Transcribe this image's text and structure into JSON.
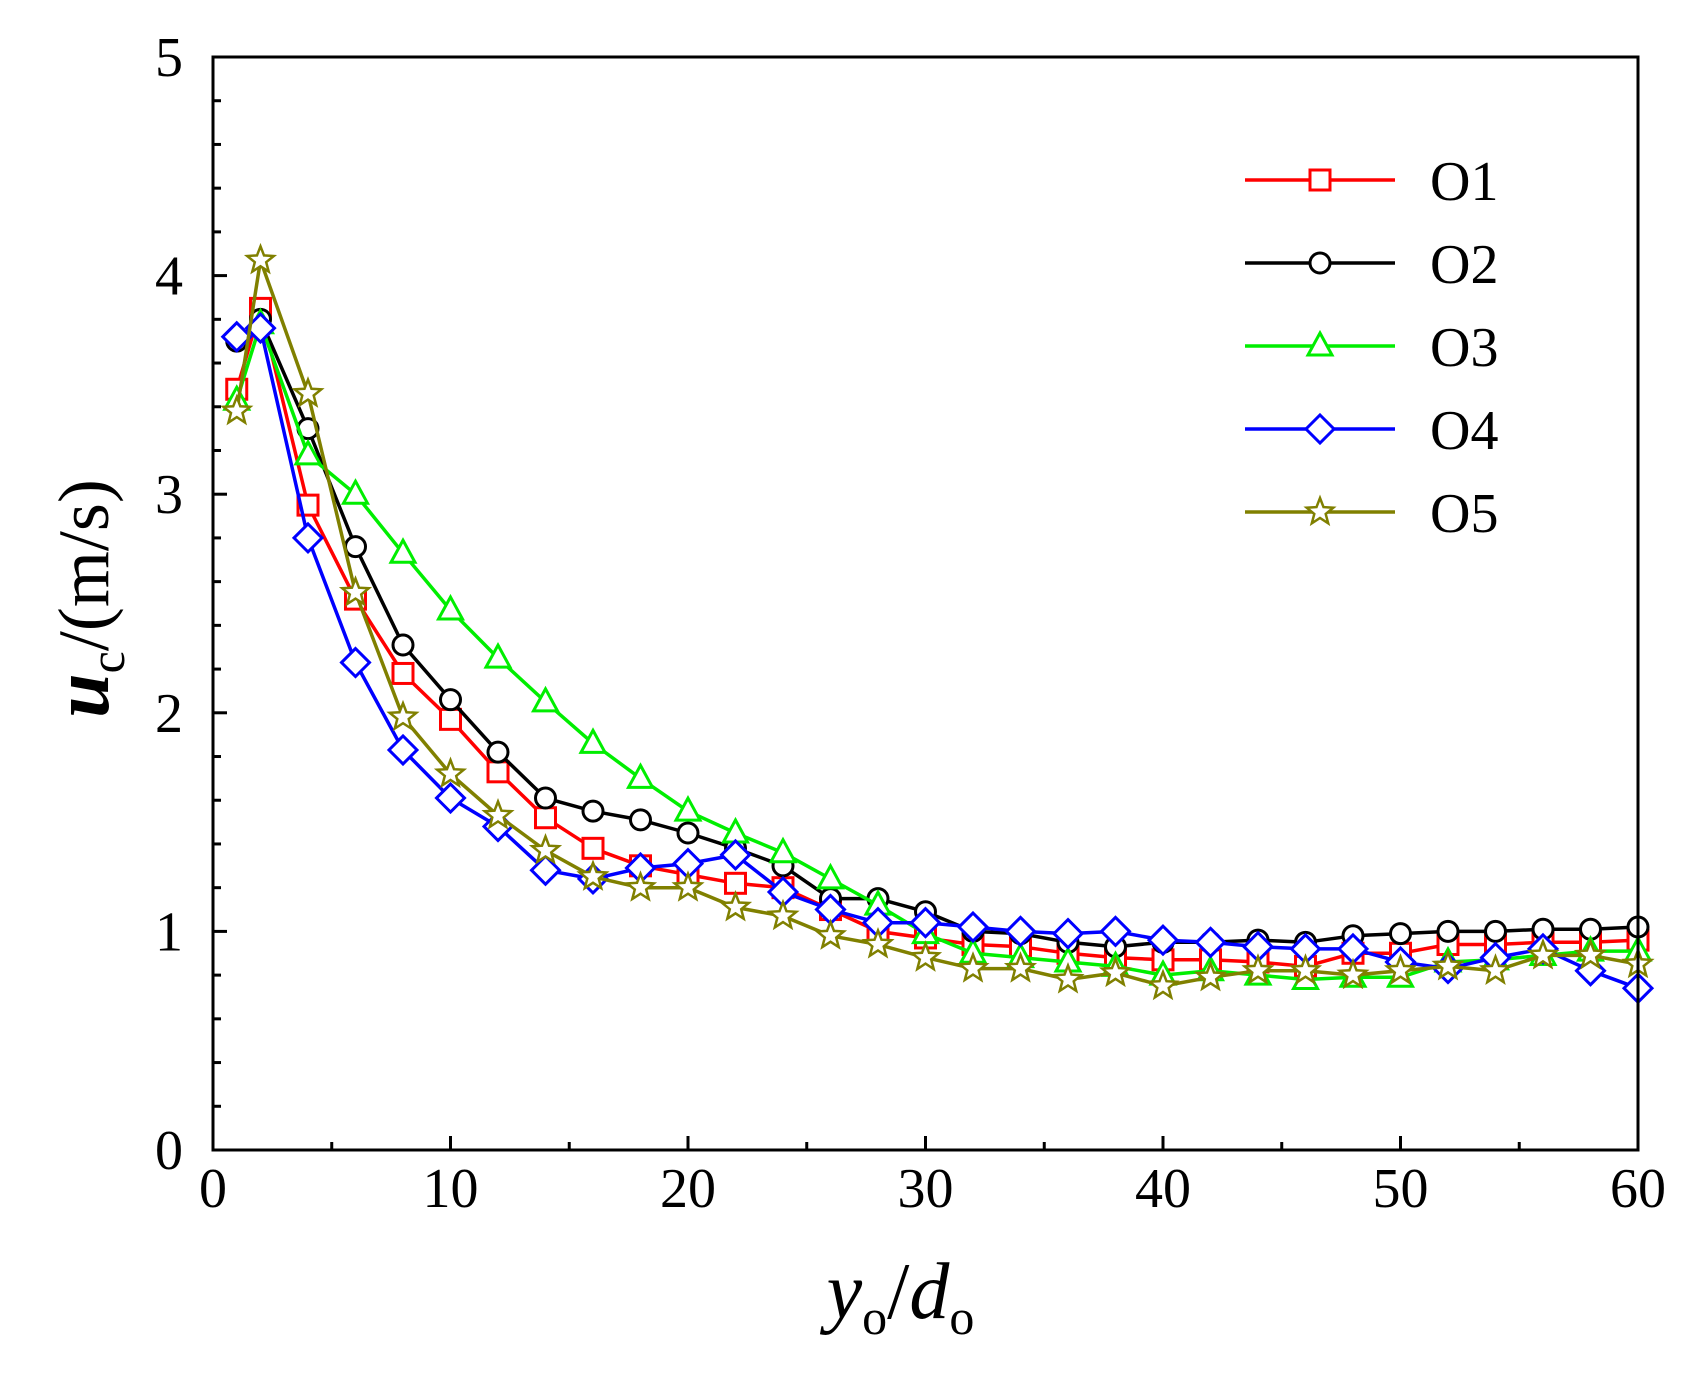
{
  "chart_data": {
    "type": "line",
    "title": "",
    "xlabel": {
      "main": "y",
      "main_sub": "o",
      "sep": "/",
      "denom": "d",
      "denom_sub": "o"
    },
    "ylabel": {
      "main": "u",
      "main_sub": "c",
      "rest": "/(m/s)"
    },
    "xlim": [
      0,
      60
    ],
    "ylim": [
      0,
      5
    ],
    "xticks": [
      0,
      10,
      20,
      30,
      40,
      50,
      60
    ],
    "yticks": [
      0,
      1,
      2,
      3,
      4,
      5
    ],
    "grid": false,
    "legend_position": "top-right",
    "x": [
      1,
      2,
      4,
      6,
      8,
      10,
      12,
      14,
      16,
      18,
      20,
      22,
      24,
      26,
      28,
      30,
      32,
      34,
      36,
      38,
      40,
      42,
      44,
      46,
      48,
      50,
      52,
      54,
      56,
      58,
      60
    ],
    "series": [
      {
        "name": "O1",
        "color": "#ff0000",
        "marker": "square",
        "values": [
          3.48,
          3.85,
          2.95,
          2.52,
          2.18,
          1.97,
          1.73,
          1.52,
          1.38,
          1.3,
          1.26,
          1.22,
          1.2,
          1.1,
          1.0,
          0.97,
          0.94,
          0.93,
          0.9,
          0.88,
          0.87,
          0.87,
          0.86,
          0.84,
          0.9,
          0.9,
          0.94,
          0.94,
          0.95,
          0.95,
          0.96
        ]
      },
      {
        "name": "O2",
        "color": "#000000",
        "marker": "circle",
        "values": [
          3.7,
          3.8,
          3.3,
          2.76,
          2.31,
          2.06,
          1.82,
          1.61,
          1.55,
          1.51,
          1.45,
          1.38,
          1.3,
          1.15,
          1.15,
          1.09,
          1.0,
          0.99,
          0.95,
          0.93,
          0.95,
          0.95,
          0.96,
          0.95,
          0.98,
          0.99,
          1.0,
          1.0,
          1.01,
          1.01,
          1.02
        ]
      },
      {
        "name": "O3",
        "color": "#00ee00",
        "marker": "triangle",
        "values": [
          3.43,
          3.78,
          3.18,
          3.0,
          2.73,
          2.47,
          2.25,
          2.05,
          1.86,
          1.7,
          1.55,
          1.45,
          1.36,
          1.24,
          1.12,
          0.99,
          0.9,
          0.88,
          0.86,
          0.84,
          0.8,
          0.82,
          0.8,
          0.78,
          0.79,
          0.79,
          0.86,
          0.87,
          0.89,
          0.91,
          0.91
        ]
      },
      {
        "name": "O4",
        "color": "#0000ff",
        "marker": "diamond",
        "values": [
          3.72,
          3.76,
          2.8,
          2.23,
          1.83,
          1.61,
          1.48,
          1.28,
          1.24,
          1.29,
          1.31,
          1.35,
          1.18,
          1.1,
          1.04,
          1.04,
          1.02,
          1.0,
          0.99,
          1.0,
          0.96,
          0.95,
          0.93,
          0.92,
          0.92,
          0.86,
          0.83,
          0.88,
          0.92,
          0.82,
          0.74
        ]
      },
      {
        "name": "O5",
        "color": "#808000",
        "marker": "star",
        "values": [
          3.38,
          4.07,
          3.46,
          2.55,
          1.98,
          1.72,
          1.53,
          1.37,
          1.25,
          1.2,
          1.2,
          1.11,
          1.07,
          0.98,
          0.94,
          0.88,
          0.83,
          0.83,
          0.78,
          0.81,
          0.75,
          0.79,
          0.82,
          0.82,
          0.8,
          0.82,
          0.84,
          0.82,
          0.89,
          0.89,
          0.85
        ]
      }
    ]
  }
}
